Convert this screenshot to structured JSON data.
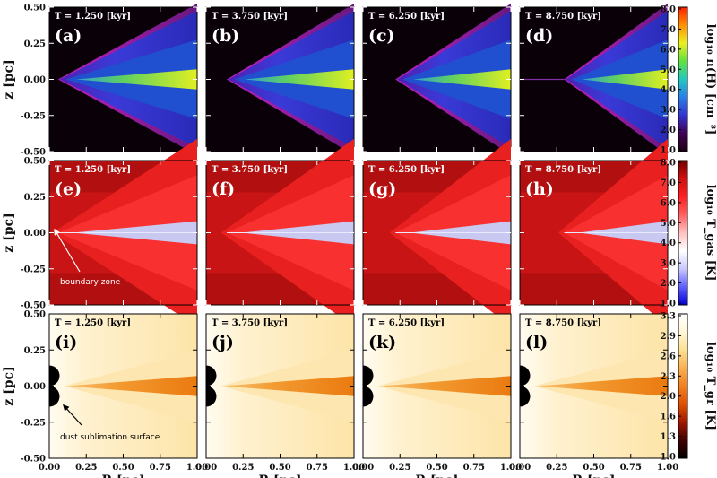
{
  "chart_data": [
    {
      "type": "heatmap",
      "row": "density",
      "quantity_label": "log₁₀ n(H) [cm⁻³]",
      "colorbar": {
        "range": [
          1.0,
          8.0
        ],
        "ticks": [
          "8.0",
          "7.0",
          "6.0",
          "5.0",
          "4.0",
          "3.0",
          "2.0",
          "1.0"
        ],
        "colors": [
          "#1a0010",
          "#400055",
          "#3333d0",
          "#2c7de8",
          "#22c8c0",
          "#60e040",
          "#e8f020",
          "#ff9000",
          "#ff2000"
        ]
      },
      "xlabel": "R [pc]",
      "ylabel": "z [pc]",
      "xlim": [
        0.0,
        1.0
      ],
      "ylim": [
        -0.5,
        0.5
      ],
      "xticks": [
        "0.00",
        "0.25",
        "0.50",
        "0.75",
        "1.00"
      ],
      "yticks": [
        "0.50",
        "0.25",
        "0.00",
        "-0.25",
        "-0.50"
      ],
      "panels": [
        {
          "letter": "(a)",
          "time": "T = 1.250 [kyr]",
          "time_kyr": 1.25
        },
        {
          "letter": "(b)",
          "time": "T = 3.750 [kyr]",
          "time_kyr": 3.75
        },
        {
          "letter": "(c)",
          "time": "T = 6.250 [kyr]",
          "time_kyr": 6.25
        },
        {
          "letter": "(d)",
          "time": "T = 8.750 [kyr]",
          "time_kyr": 8.75
        }
      ]
    },
    {
      "type": "heatmap",
      "row": "gas_temperature",
      "quantity_label": "log₁₀ T_gas [K]",
      "colorbar": {
        "range": [
          1.0,
          8.0
        ],
        "ticks": [
          "8.0",
          "7.0",
          "6.0",
          "5.0",
          "4.0",
          "3.0",
          "2.0",
          "1.0"
        ],
        "colors": [
          "#0000d0",
          "#6060ff",
          "#c8c8ff",
          "#ffffff",
          "#ffc0c0",
          "#ff6060",
          "#ff2020",
          "#d01010",
          "#700000"
        ]
      },
      "xlabel": "R [pc]",
      "ylabel": "z [pc]",
      "xlim": [
        0.0,
        1.0
      ],
      "ylim": [
        -0.5,
        0.5
      ],
      "xticks": [
        "0.00",
        "0.25",
        "0.50",
        "0.75",
        "1.00"
      ],
      "yticks": [
        "0.50",
        "0.25",
        "0.00",
        "-0.25",
        "-0.50"
      ],
      "annotation": "boundary zone",
      "panels": [
        {
          "letter": "(e)",
          "time": "T = 1.250 [kyr]",
          "time_kyr": 1.25
        },
        {
          "letter": "(f)",
          "time": "T = 3.750 [kyr]",
          "time_kyr": 3.75
        },
        {
          "letter": "(g)",
          "time": "T = 6.250 [kyr]",
          "time_kyr": 6.25
        },
        {
          "letter": "(h)",
          "time": "T = 8.750 [kyr]",
          "time_kyr": 8.75
        }
      ]
    },
    {
      "type": "heatmap",
      "row": "dust_temperature",
      "quantity_label": "log₁₀ T_gr [K]",
      "colorbar": {
        "range": [
          1.0,
          3.3
        ],
        "ticks": [
          "3.3",
          "2.9",
          "2.6",
          "2.3",
          "2.0",
          "1.6",
          "1.3",
          "1.0"
        ],
        "colors": [
          "#000000",
          "#400000",
          "#a01800",
          "#e05000",
          "#f08020",
          "#f8b050",
          "#fde090",
          "#fff6d8",
          "#ffffff"
        ]
      },
      "xlabel": "R [pc]",
      "ylabel": "z [pc]",
      "xlim": [
        0.0,
        1.0
      ],
      "ylim": [
        -0.5,
        0.5
      ],
      "xticks": [
        "0.00",
        "0.25",
        "0.50",
        "0.75",
        "1.00"
      ],
      "yticks": [
        "0.50",
        "0.25",
        "0.00",
        "-0.25",
        "-0.50"
      ],
      "annotation": "dust sublimation surface",
      "panels": [
        {
          "letter": "(i)",
          "time": "T = 1.250 [kyr]",
          "time_kyr": 1.25
        },
        {
          "letter": "(j)",
          "time": "T = 3.750 [kyr]",
          "time_kyr": 3.75
        },
        {
          "letter": "(k)",
          "time": "T = 6.250 [kyr]",
          "time_kyr": 6.25
        },
        {
          "letter": "(l)",
          "time": "T = 8.750 [kyr]",
          "time_kyr": 8.75
        }
      ]
    }
  ]
}
